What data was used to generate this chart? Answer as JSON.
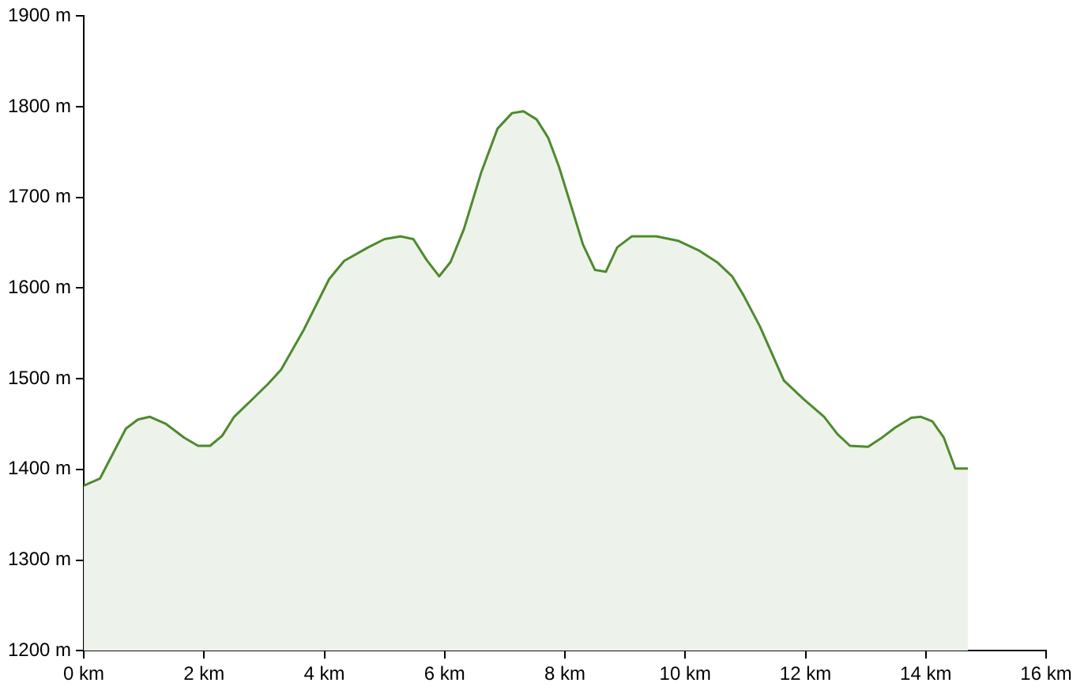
{
  "chart_data": {
    "type": "area",
    "x": [
      0,
      0.27,
      0.7,
      0.9,
      1.1,
      1.37,
      1.67,
      1.9,
      2.1,
      2.3,
      2.5,
      2.75,
      3.06,
      3.28,
      3.65,
      4.08,
      4.33,
      4.73,
      5.0,
      5.27,
      5.48,
      5.7,
      5.91,
      6.1,
      6.32,
      6.61,
      6.88,
      7.12,
      7.31,
      7.53,
      7.72,
      7.9,
      8.12,
      8.3,
      8.5,
      8.68,
      8.87,
      9.11,
      9.52,
      9.89,
      10.24,
      10.54,
      10.78,
      10.97,
      11.24,
      11.64,
      11.96,
      12.31,
      12.53,
      12.74,
      13.04,
      13.25,
      13.49,
      13.76,
      13.92,
      14.11,
      14.3,
      14.49,
      14.7
    ],
    "series": [
      {
        "color": "#4e8a2e",
        "values": [
          1382,
          1390,
          1445,
          1455,
          1458,
          1450,
          1435,
          1426,
          1426,
          1437,
          1458,
          1474,
          1494,
          1510,
          1553,
          1610,
          1630,
          1645,
          1654,
          1657,
          1654,
          1631,
          1613,
          1629,
          1665,
          1728,
          1776,
          1793,
          1795,
          1786,
          1766,
          1734,
          1687,
          1648,
          1620,
          1618,
          1645,
          1657,
          1657,
          1652,
          1641,
          1628,
          1613,
          1592,
          1558,
          1498,
          1478,
          1458,
          1439,
          1426,
          1425,
          1434,
          1446,
          1457,
          1458,
          1453,
          1435,
          1401,
          1401
        ]
      }
    ],
    "xlim": [
      0,
      16
    ],
    "xticks": [
      {
        "value": 0,
        "label": "0 km"
      },
      {
        "value": 2,
        "label": "2 km"
      },
      {
        "value": 4,
        "label": "4 km"
      },
      {
        "value": 6,
        "label": "6 km"
      },
      {
        "value": 8,
        "label": "8 km"
      },
      {
        "value": 10,
        "label": "10 km"
      },
      {
        "value": 12,
        "label": "12 km"
      },
      {
        "value": 14,
        "label": "14 km"
      },
      {
        "value": 16,
        "label": "16 km"
      }
    ],
    "ylim": [
      1200,
      1900
    ],
    "yticks": [
      {
        "value": 1200,
        "label": "1200 m"
      },
      {
        "value": 1300,
        "label": "1300 m"
      },
      {
        "value": 1400,
        "label": "1400 m"
      },
      {
        "value": 1500,
        "label": "1500 m"
      },
      {
        "value": 1600,
        "label": "1600 m"
      },
      {
        "value": 1700,
        "label": "1700 m"
      },
      {
        "value": 1800,
        "label": "1800 m"
      },
      {
        "value": 1900,
        "label": "1900 m"
      }
    ],
    "grid": false,
    "legend": false
  }
}
